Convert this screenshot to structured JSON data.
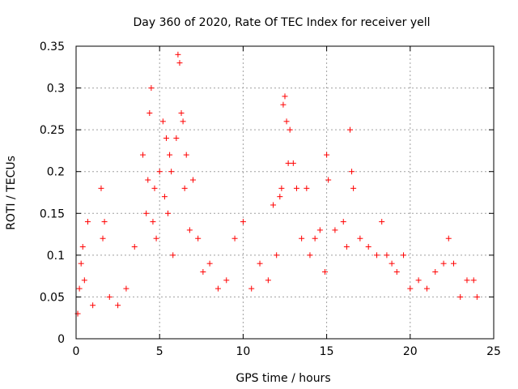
{
  "chart_data": {
    "type": "scatter",
    "title": "Day 360 of 2020, Rate Of TEC Index for receiver yell",
    "xlabel": "GPS time / hours",
    "ylabel": "ROTI / TECUs",
    "xlim": [
      0,
      25
    ],
    "ylim": [
      0,
      0.35
    ],
    "xticks": [
      0,
      5,
      10,
      15,
      20,
      25
    ],
    "xtick_labels": [
      "0",
      "5",
      "10",
      "15",
      "20",
      "25"
    ],
    "yticks": [
      0,
      0.05,
      0.1,
      0.15,
      0.2,
      0.25,
      0.3,
      0.35
    ],
    "ytick_labels": [
      "0",
      "0.05",
      "0.1",
      "0.15",
      "0.2",
      "0.25",
      "0.3",
      "0.35"
    ],
    "grid": true,
    "marker": "+",
    "color": "#ff0000",
    "series": [
      {
        "name": "ROTI",
        "x": [
          0.1,
          0.2,
          0.3,
          0.4,
          0.5,
          0.7,
          1.0,
          1.5,
          1.6,
          1.7,
          2.0,
          2.5,
          3.0,
          3.5,
          4.0,
          4.2,
          4.3,
          4.4,
          4.5,
          4.6,
          4.7,
          4.8,
          5.0,
          5.2,
          5.3,
          5.4,
          5.5,
          5.6,
          5.7,
          5.8,
          6.0,
          6.1,
          6.2,
          6.3,
          6.4,
          6.5,
          6.6,
          6.8,
          7.0,
          7.3,
          7.6,
          8.0,
          8.5,
          9.0,
          9.5,
          10.0,
          10.5,
          11.0,
          11.5,
          11.8,
          12.0,
          12.2,
          12.3,
          12.4,
          12.5,
          12.6,
          12.7,
          12.8,
          13.0,
          13.2,
          13.5,
          13.8,
          14.0,
          14.3,
          14.6,
          14.9,
          15.0,
          15.1,
          15.5,
          16.0,
          16.2,
          16.4,
          16.5,
          16.6,
          17.0,
          17.5,
          18.0,
          18.3,
          18.6,
          18.9,
          19.2,
          19.6,
          20.0,
          20.5,
          21.0,
          21.5,
          22.0,
          22.3,
          22.6,
          23.0,
          23.4,
          23.8,
          24.0
        ],
        "y": [
          0.03,
          0.06,
          0.09,
          0.11,
          0.07,
          0.14,
          0.04,
          0.18,
          0.12,
          0.14,
          0.05,
          0.04,
          0.06,
          0.11,
          0.22,
          0.15,
          0.19,
          0.27,
          0.3,
          0.14,
          0.18,
          0.12,
          0.2,
          0.26,
          0.17,
          0.24,
          0.15,
          0.22,
          0.2,
          0.1,
          0.24,
          0.34,
          0.33,
          0.27,
          0.26,
          0.18,
          0.22,
          0.13,
          0.19,
          0.12,
          0.08,
          0.09,
          0.06,
          0.07,
          0.12,
          0.14,
          0.06,
          0.09,
          0.07,
          0.16,
          0.1,
          0.17,
          0.18,
          0.28,
          0.29,
          0.26,
          0.21,
          0.25,
          0.21,
          0.18,
          0.12,
          0.18,
          0.1,
          0.12,
          0.13,
          0.08,
          0.22,
          0.19,
          0.13,
          0.14,
          0.11,
          0.25,
          0.2,
          0.18,
          0.12,
          0.11,
          0.1,
          0.14,
          0.1,
          0.09,
          0.08,
          0.1,
          0.06,
          0.07,
          0.06,
          0.08,
          0.09,
          0.12,
          0.09,
          0.05,
          0.07,
          0.07,
          0.05
        ]
      }
    ]
  }
}
